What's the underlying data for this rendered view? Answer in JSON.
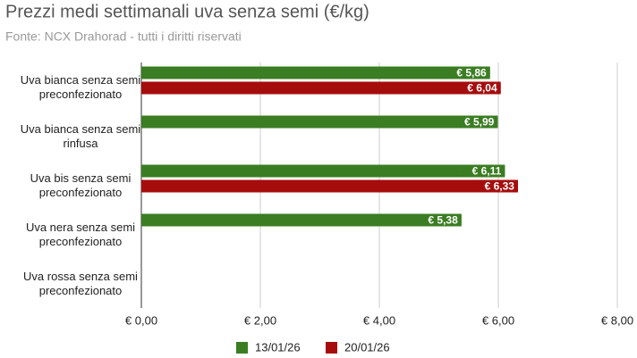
{
  "chart_data": {
    "type": "bar",
    "orientation": "horizontal",
    "title": "Prezzi medi settimanali uva senza semi (€/kg)",
    "subtitle": "Fonte: NCX Drahorad - tutti i diritti riservati",
    "categories": [
      "Uva bianca senza semi preconfezionato",
      "Uva bianca senza semi rinfusa",
      "Uva bis senza semi preconfezionato",
      "Uva nera senza semi preconfezionato",
      "Uva rossa senza semi preconfezionato"
    ],
    "series": [
      {
        "name": "13/01/26",
        "color": "#3a7d22",
        "values": [
          5.86,
          5.99,
          6.11,
          5.38,
          null
        ],
        "value_labels": [
          "€ 5,86",
          "€ 5,99",
          "€ 6,11",
          "€ 5,38",
          null
        ]
      },
      {
        "name": "20/01/26",
        "color": "#a50d0d",
        "values": [
          6.04,
          null,
          6.33,
          null,
          null
        ],
        "value_labels": [
          "€ 6,04",
          null,
          "€ 6,33",
          null,
          null
        ]
      }
    ],
    "xlim": [
      0,
      8
    ],
    "xticks": [
      {
        "value": 0,
        "label": "€ 0,00"
      },
      {
        "value": 2,
        "label": "€ 2,00"
      },
      {
        "value": 4,
        "label": "€ 4,00"
      },
      {
        "value": 6,
        "label": "€ 6,00"
      },
      {
        "value": 8,
        "label": "€ 8,00"
      }
    ],
    "grid": true,
    "legend": "bottom"
  }
}
